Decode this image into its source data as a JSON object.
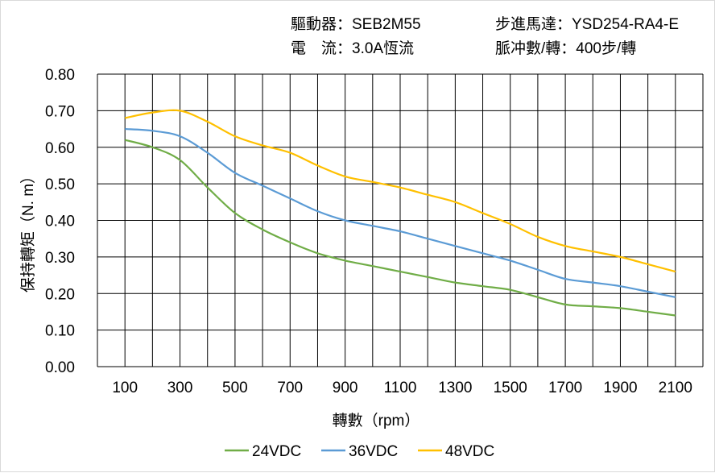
{
  "header": {
    "driver": "驅動器：SEB2M55",
    "motor": "步進馬達：YSD254-RA4-E",
    "current": "電　流：3.0A恆流",
    "pulses": "脈冲數/轉：400步/轉"
  },
  "chart_data": {
    "type": "line",
    "title": "",
    "xlabel": "轉數（rpm）",
    "ylabel": "保持轉矩（N. m）",
    "xlim": [
      0,
      2200
    ],
    "ylim": [
      0,
      0.8
    ],
    "xticks": [
      "100",
      "300",
      "500",
      "700",
      "900",
      "1100",
      "1300",
      "1500",
      "1700",
      "1900",
      "2100"
    ],
    "yticks": [
      "0.00",
      "0.10",
      "0.20",
      "0.30",
      "0.40",
      "0.50",
      "0.60",
      "0.70",
      "0.80"
    ],
    "grid": true,
    "legend_position": "bottom",
    "x": [
      100,
      200,
      300,
      400,
      500,
      600,
      700,
      800,
      900,
      1000,
      1100,
      1200,
      1300,
      1400,
      1500,
      1600,
      1700,
      1800,
      1900,
      2000,
      2100
    ],
    "series": [
      {
        "name": "24VDC",
        "color": "#70ad47",
        "values": [
          0.62,
          0.6,
          0.565,
          0.49,
          0.42,
          0.375,
          0.34,
          0.31,
          0.29,
          0.275,
          0.26,
          0.245,
          0.23,
          0.22,
          0.21,
          0.19,
          0.17,
          0.165,
          0.16,
          0.15,
          0.14
        ]
      },
      {
        "name": "36VDC",
        "color": "#5b9bd5",
        "values": [
          0.65,
          0.645,
          0.63,
          0.585,
          0.53,
          0.495,
          0.46,
          0.425,
          0.4,
          0.385,
          0.37,
          0.35,
          0.33,
          0.31,
          0.29,
          0.265,
          0.24,
          0.23,
          0.22,
          0.205,
          0.19
        ]
      },
      {
        "name": "48VDC",
        "color": "#ffc000",
        "values": [
          0.68,
          0.695,
          0.7,
          0.67,
          0.63,
          0.605,
          0.585,
          0.55,
          0.52,
          0.505,
          0.49,
          0.47,
          0.45,
          0.42,
          0.39,
          0.355,
          0.33,
          0.315,
          0.3,
          0.28,
          0.26
        ]
      }
    ]
  }
}
